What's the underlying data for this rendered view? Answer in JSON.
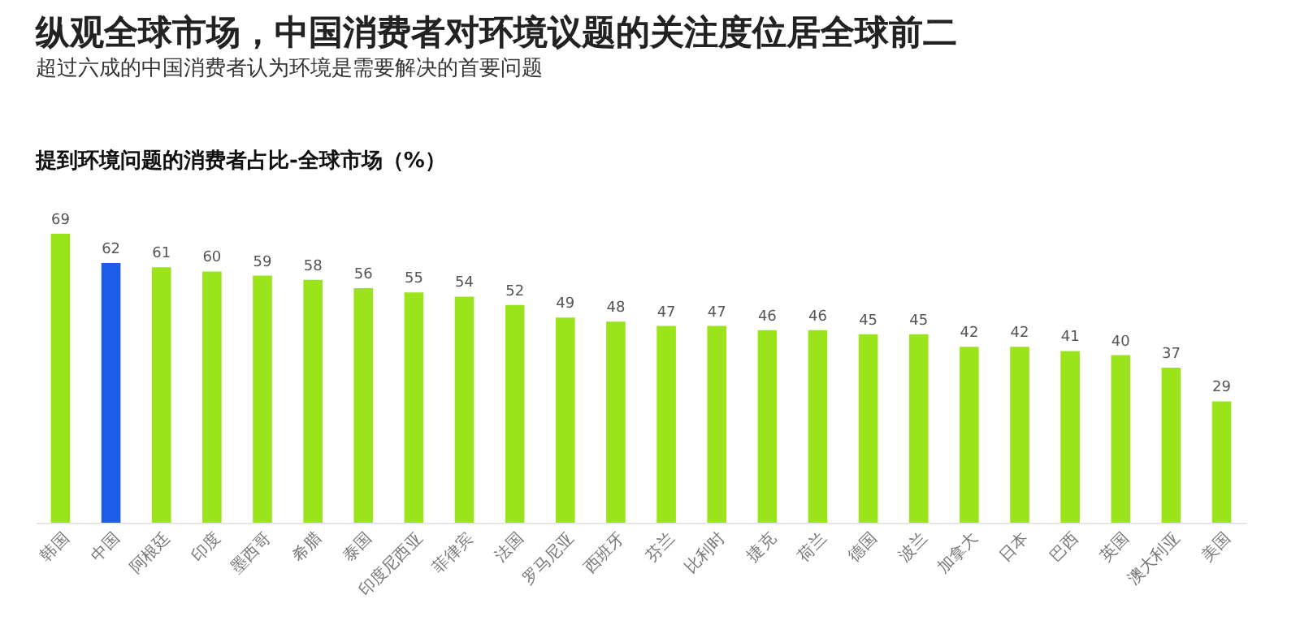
{
  "chart_data": {
    "type": "bar",
    "title": "纵观全球市场，中国消费者对环境议题的关注度位居全球前二",
    "subtitle": "超过六成的中国消费者认为环境是需要解决的首要问题",
    "annotations": [
      "提到环境问题的消费者占比-全球市场（%）"
    ],
    "categories": [
      "韩国",
      "中国",
      "阿根廷",
      "印度",
      "墨西哥",
      "希腊",
      "泰国",
      "印度尼西亚",
      "菲律宾",
      "法国",
      "罗马尼亚",
      "西班牙",
      "芬兰",
      "比利时",
      "捷克",
      "荷兰",
      "德国",
      "波兰",
      "加拿大",
      "日本",
      "巴西",
      "英国",
      "澳大利亚",
      "美国"
    ],
    "values": [
      69,
      62,
      61,
      60,
      59,
      58,
      56,
      55,
      54,
      52,
      49,
      48,
      47,
      47,
      46,
      46,
      45,
      45,
      42,
      42,
      41,
      40,
      37,
      29
    ],
    "colors": [
      "#9be31b",
      "#1c5ce6",
      "#9be31b",
      "#9be31b",
      "#9be31b",
      "#9be31b",
      "#9be31b",
      "#9be31b",
      "#9be31b",
      "#9be31b",
      "#9be31b",
      "#9be31b",
      "#9be31b",
      "#9be31b",
      "#9be31b",
      "#9be31b",
      "#9be31b",
      "#9be31b",
      "#9be31b",
      "#9be31b",
      "#9be31b",
      "#9be31b",
      "#9be31b",
      "#9be31b"
    ],
    "data_labels": true
  }
}
